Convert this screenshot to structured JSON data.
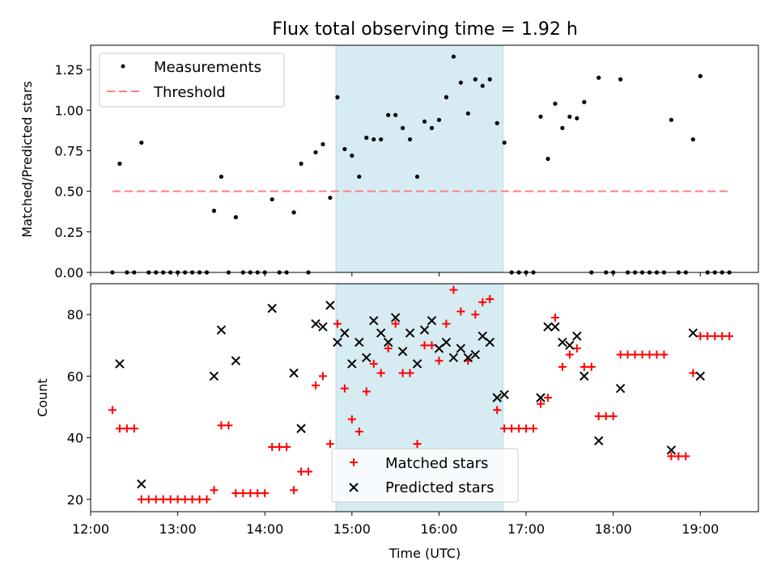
{
  "chart_data": [
    {
      "type": "scatter",
      "title": "Flux total observing time = 1.92 h",
      "ylabel": "Matched/Predicted stars",
      "xlabel": "",
      "xlim": [
        "12:00",
        "19:40"
      ],
      "ylim": [
        0,
        1.4
      ],
      "yticks": [
        "0.00",
        "0.25",
        "0.50",
        "0.75",
        "1.00",
        "1.25"
      ],
      "highlight_span": {
        "start": "14:49",
        "end": "16:44",
        "color": "#add8e6"
      },
      "legend_position": "upper left",
      "series": [
        {
          "name": "Measurements",
          "color": "#000000",
          "points": [
            [
              "12:15",
              0
            ],
            [
              "12:20",
              0.67
            ],
            [
              "12:25",
              0
            ],
            [
              "12:30",
              0
            ],
            [
              "12:35",
              0.8
            ],
            [
              "12:40",
              0
            ],
            [
              "12:45",
              0
            ],
            [
              "12:50",
              0
            ],
            [
              "12:55",
              0
            ],
            [
              "13:00",
              0
            ],
            [
              "13:05",
              0
            ],
            [
              "13:10",
              0
            ],
            [
              "13:15",
              0
            ],
            [
              "13:20",
              0
            ],
            [
              "13:25",
              0.38
            ],
            [
              "13:30",
              0.59
            ],
            [
              "13:35",
              0
            ],
            [
              "13:40",
              0.34
            ],
            [
              "13:45",
              0
            ],
            [
              "13:50",
              0
            ],
            [
              "13:55",
              0
            ],
            [
              "14:00",
              0
            ],
            [
              "14:05",
              0.45
            ],
            [
              "14:10",
              0
            ],
            [
              "14:15",
              0
            ],
            [
              "14:20",
              0.37
            ],
            [
              "14:25",
              0.67
            ],
            [
              "14:30",
              0
            ],
            [
              "14:35",
              0.74
            ],
            [
              "14:40",
              0.79
            ],
            [
              "14:45",
              0.46
            ],
            [
              "14:50",
              1.08
            ],
            [
              "14:55",
              0.76
            ],
            [
              "15:00",
              0.72
            ],
            [
              "15:05",
              0.59
            ],
            [
              "15:10",
              0.83
            ],
            [
              "15:15",
              0.82
            ],
            [
              "15:20",
              0.82
            ],
            [
              "15:25",
              0.97
            ],
            [
              "15:30",
              0.97
            ],
            [
              "15:35",
              0.89
            ],
            [
              "15:40",
              0.82
            ],
            [
              "15:45",
              0.59
            ],
            [
              "15:50",
              0.93
            ],
            [
              "15:55",
              0.89
            ],
            [
              "16:00",
              0.94
            ],
            [
              "16:05",
              1.08
            ],
            [
              "16:10",
              1.33
            ],
            [
              "16:15",
              1.17
            ],
            [
              "16:20",
              0.98
            ],
            [
              "16:25",
              1.19
            ],
            [
              "16:30",
              1.15
            ],
            [
              "16:35",
              1.19
            ],
            [
              "16:40",
              0.92
            ],
            [
              "16:45",
              0.8
            ],
            [
              "16:50",
              0
            ],
            [
              "16:55",
              0
            ],
            [
              "17:00",
              0
            ],
            [
              "17:05",
              0
            ],
            [
              "17:10",
              0.96
            ],
            [
              "17:15",
              0.7
            ],
            [
              "17:20",
              1.04
            ],
            [
              "17:25",
              0.89
            ],
            [
              "17:30",
              0.96
            ],
            [
              "17:35",
              0.95
            ],
            [
              "17:40",
              1.05
            ],
            [
              "17:45",
              0
            ],
            [
              "17:50",
              1.2
            ],
            [
              "17:55",
              0
            ],
            [
              "18:00",
              0
            ],
            [
              "18:05",
              1.19
            ],
            [
              "18:10",
              0
            ],
            [
              "18:15",
              0
            ],
            [
              "18:20",
              0
            ],
            [
              "18:25",
              0
            ],
            [
              "18:30",
              0
            ],
            [
              "18:35",
              0
            ],
            [
              "18:40",
              0.94
            ],
            [
              "18:45",
              0
            ],
            [
              "18:50",
              0
            ],
            [
              "18:55",
              0.82
            ],
            [
              "19:00",
              1.21
            ],
            [
              "19:05",
              0
            ],
            [
              "19:10",
              0
            ],
            [
              "19:15",
              0
            ],
            [
              "19:20",
              0
            ]
          ]
        },
        {
          "name": "Threshold",
          "type": "line",
          "style": "dashed",
          "color": "#ff7f7f",
          "points": [
            [
              "12:15",
              0.5
            ],
            [
              "19:20",
              0.5
            ]
          ]
        }
      ]
    },
    {
      "type": "scatter",
      "title": "",
      "ylabel": "Count",
      "xlabel": "Time (UTC)",
      "xlim": [
        "12:00",
        "19:40"
      ],
      "ylim": [
        16,
        90
      ],
      "yticks": [
        "20",
        "40",
        "60",
        "80"
      ],
      "xticks": [
        "12:00",
        "13:00",
        "14:00",
        "15:00",
        "16:00",
        "17:00",
        "18:00",
        "19:00"
      ],
      "highlight_span": {
        "start": "14:49",
        "end": "16:44",
        "color": "#add8e6"
      },
      "legend_position": "lower center",
      "series": [
        {
          "name": "Matched stars",
          "marker": "plus",
          "color": "#ff0000",
          "points": [
            [
              "12:15",
              49
            ],
            [
              "12:20",
              43
            ],
            [
              "12:25",
              43
            ],
            [
              "12:30",
              43
            ],
            [
              "12:35",
              20
            ],
            [
              "12:40",
              20
            ],
            [
              "12:45",
              20
            ],
            [
              "12:50",
              20
            ],
            [
              "12:55",
              20
            ],
            [
              "13:00",
              20
            ],
            [
              "13:05",
              20
            ],
            [
              "13:10",
              20
            ],
            [
              "13:15",
              20
            ],
            [
              "13:20",
              20
            ],
            [
              "13:25",
              23
            ],
            [
              "13:30",
              44
            ],
            [
              "13:35",
              44
            ],
            [
              "13:40",
              22
            ],
            [
              "13:45",
              22
            ],
            [
              "13:50",
              22
            ],
            [
              "13:55",
              22
            ],
            [
              "14:00",
              22
            ],
            [
              "14:05",
              37
            ],
            [
              "14:10",
              37
            ],
            [
              "14:15",
              37
            ],
            [
              "14:20",
              23
            ],
            [
              "14:25",
              29
            ],
            [
              "14:30",
              29
            ],
            [
              "14:35",
              57
            ],
            [
              "14:40",
              60
            ],
            [
              "14:45",
              38
            ],
            [
              "14:50",
              77
            ],
            [
              "14:55",
              56
            ],
            [
              "15:00",
              46
            ],
            [
              "15:05",
              42
            ],
            [
              "15:10",
              55
            ],
            [
              "15:15",
              64
            ],
            [
              "15:20",
              61
            ],
            [
              "15:25",
              69
            ],
            [
              "15:30",
              77
            ],
            [
              "15:35",
              61
            ],
            [
              "15:40",
              61
            ],
            [
              "15:45",
              38
            ],
            [
              "15:50",
              70
            ],
            [
              "15:55",
              70
            ],
            [
              "16:00",
              65
            ],
            [
              "16:05",
              77
            ],
            [
              "16:10",
              88
            ],
            [
              "16:15",
              81
            ],
            [
              "16:20",
              65
            ],
            [
              "16:25",
              80
            ],
            [
              "16:30",
              84
            ],
            [
              "16:35",
              85
            ],
            [
              "16:40",
              49
            ],
            [
              "16:45",
              43
            ],
            [
              "16:50",
              43
            ],
            [
              "16:55",
              43
            ],
            [
              "17:00",
              43
            ],
            [
              "17:05",
              43
            ],
            [
              "17:10",
              51
            ],
            [
              "17:15",
              53
            ],
            [
              "17:20",
              79
            ],
            [
              "17:25",
              63
            ],
            [
              "17:30",
              67
            ],
            [
              "17:35",
              69
            ],
            [
              "17:40",
              63
            ],
            [
              "17:45",
              63
            ],
            [
              "17:50",
              47
            ],
            [
              "17:55",
              47
            ],
            [
              "18:00",
              47
            ],
            [
              "18:05",
              67
            ],
            [
              "18:10",
              67
            ],
            [
              "18:15",
              67
            ],
            [
              "18:20",
              67
            ],
            [
              "18:25",
              67
            ],
            [
              "18:30",
              67
            ],
            [
              "18:35",
              67
            ],
            [
              "18:40",
              34
            ],
            [
              "18:45",
              34
            ],
            [
              "18:50",
              34
            ],
            [
              "18:55",
              61
            ],
            [
              "19:00",
              73
            ],
            [
              "19:05",
              73
            ],
            [
              "19:10",
              73
            ],
            [
              "19:15",
              73
            ],
            [
              "19:20",
              73
            ]
          ]
        },
        {
          "name": "Predicted stars",
          "marker": "x",
          "color": "#000000",
          "points": [
            [
              "12:20",
              64
            ],
            [
              "12:35",
              25
            ],
            [
              "13:25",
              60
            ],
            [
              "13:30",
              75
            ],
            [
              "13:40",
              65
            ],
            [
              "14:05",
              82
            ],
            [
              "14:20",
              61
            ],
            [
              "14:25",
              43
            ],
            [
              "14:35",
              77
            ],
            [
              "14:40",
              76
            ],
            [
              "14:45",
              83
            ],
            [
              "14:50",
              71
            ],
            [
              "14:55",
              74
            ],
            [
              "15:00",
              64
            ],
            [
              "15:05",
              71
            ],
            [
              "15:10",
              66
            ],
            [
              "15:15",
              78
            ],
            [
              "15:20",
              74
            ],
            [
              "15:25",
              71
            ],
            [
              "15:30",
              79
            ],
            [
              "15:35",
              68
            ],
            [
              "15:40",
              74
            ],
            [
              "15:45",
              64
            ],
            [
              "15:50",
              75
            ],
            [
              "15:55",
              78
            ],
            [
              "16:00",
              69
            ],
            [
              "16:05",
              71
            ],
            [
              "16:10",
              66
            ],
            [
              "16:15",
              69
            ],
            [
              "16:20",
              66
            ],
            [
              "16:25",
              67
            ],
            [
              "16:30",
              73
            ],
            [
              "16:35",
              71
            ],
            [
              "16:40",
              53
            ],
            [
              "16:45",
              54
            ],
            [
              "17:10",
              53
            ],
            [
              "17:15",
              76
            ],
            [
              "17:20",
              76
            ],
            [
              "17:25",
              71
            ],
            [
              "17:30",
              70
            ],
            [
              "17:35",
              73
            ],
            [
              "17:40",
              60
            ],
            [
              "17:50",
              39
            ],
            [
              "18:05",
              56
            ],
            [
              "18:40",
              36
            ],
            [
              "18:55",
              74
            ],
            [
              "19:00",
              60
            ]
          ]
        }
      ]
    }
  ]
}
